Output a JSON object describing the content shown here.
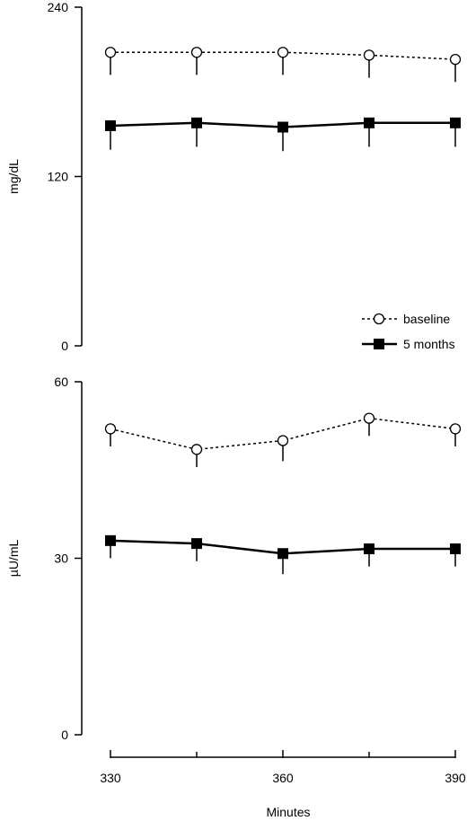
{
  "chart_data": [
    {
      "type": "line",
      "title": "",
      "xlabel": "",
      "ylabel": "mg/dL",
      "ylim": [
        0,
        240
      ],
      "yticks": [
        0,
        120,
        240
      ],
      "x": [
        330,
        345,
        360,
        375,
        390
      ],
      "series": [
        {
          "name": "baseline",
          "values": [
            208,
            208,
            208,
            206,
            203
          ],
          "err_lower": [
            16,
            16,
            16,
            16,
            16
          ],
          "marker": "open-circle",
          "line": "dotted",
          "color": "#000000"
        },
        {
          "name": "5 months",
          "values": [
            156,
            158,
            155,
            158,
            158
          ],
          "err_lower": [
            17,
            17,
            17,
            17,
            17
          ],
          "marker": "filled-square",
          "line": "solid",
          "color": "#000000"
        }
      ],
      "legend": {
        "position": "bottom-right",
        "entries": [
          "baseline",
          "5 months"
        ]
      },
      "grid": false
    },
    {
      "type": "line",
      "title": "",
      "xlabel": "Minutes",
      "ylabel": "µU/mL",
      "ylim": [
        0,
        60
      ],
      "yticks": [
        0,
        30,
        60
      ],
      "xlim": [
        330,
        390
      ],
      "xticks": [
        330,
        360,
        390
      ],
      "x": [
        330,
        345,
        360,
        375,
        390
      ],
      "series": [
        {
          "name": "baseline",
          "values": [
            52,
            48.5,
            50,
            53.8,
            52
          ],
          "err_lower": [
            3,
            3,
            3.5,
            3,
            3
          ],
          "marker": "open-circle",
          "line": "dotted",
          "color": "#000000"
        },
        {
          "name": "5 months",
          "values": [
            33,
            32.5,
            30.8,
            31.6,
            31.6
          ],
          "err_lower": [
            3,
            3,
            3.5,
            3,
            3
          ],
          "marker": "filled-square",
          "line": "solid",
          "color": "#000000"
        }
      ],
      "grid": false
    }
  ]
}
